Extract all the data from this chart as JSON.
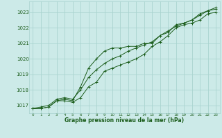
{
  "title": "Graphe pression niveau de la mer (hPa)",
  "bg_color": "#cceae8",
  "grid_color": "#aad4d0",
  "line_color": "#1a5c1a",
  "xlim": [
    -0.5,
    23.5
  ],
  "ylim": [
    1016.5,
    1023.7
  ],
  "yticks": [
    1017,
    1018,
    1019,
    1020,
    1021,
    1022,
    1023
  ],
  "xticks": [
    0,
    1,
    2,
    3,
    4,
    5,
    6,
    7,
    8,
    9,
    10,
    11,
    12,
    13,
    14,
    15,
    16,
    17,
    18,
    19,
    20,
    21,
    22,
    23
  ],
  "series": [
    [
      1016.8,
      1016.8,
      1016.9,
      1017.3,
      1017.4,
      1017.3,
      1018.2,
      1019.4,
      1020.0,
      1020.5,
      1020.7,
      1020.7,
      1020.8,
      1020.8,
      1021.0,
      1021.0,
      1021.5,
      1021.7,
      1022.2,
      1022.3,
      1022.5,
      1022.8,
      1023.1,
      1023.2
    ],
    [
      1016.8,
      1016.8,
      1016.9,
      1017.3,
      1017.3,
      1017.2,
      1017.5,
      1018.2,
      1018.5,
      1019.2,
      1019.4,
      1019.6,
      1019.8,
      1020.0,
      1020.3,
      1020.8,
      1021.1,
      1021.5,
      1022.0,
      1022.2,
      1022.3,
      1022.5,
      1022.9,
      1023.0
    ],
    [
      1016.8,
      1016.9,
      1017.0,
      1017.4,
      1017.5,
      1017.4,
      1018.0,
      1018.8,
      1019.3,
      1019.7,
      1020.0,
      1020.2,
      1020.5,
      1020.7,
      1020.9,
      1021.1,
      1021.5,
      1021.8,
      1022.1,
      1022.3,
      1022.5,
      1022.9,
      1023.1,
      1023.3
    ]
  ]
}
